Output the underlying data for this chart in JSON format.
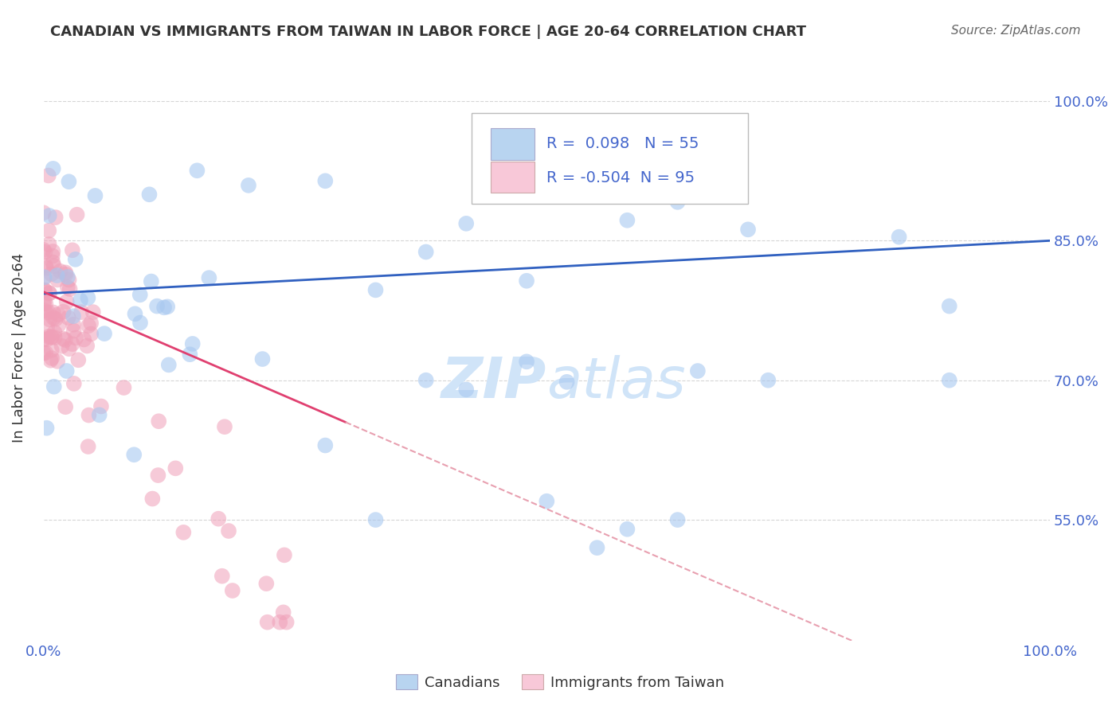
{
  "title": "CANADIAN VS IMMIGRANTS FROM TAIWAN IN LABOR FORCE | AGE 20-64 CORRELATION CHART",
  "source": "Source: ZipAtlas.com",
  "ylabel": "In Labor Force | Age 20-64",
  "xlim": [
    0.0,
    1.0
  ],
  "ylim": [
    0.42,
    1.05
  ],
  "yticks": [
    0.55,
    0.7,
    0.85,
    1.0
  ],
  "ytick_labels": [
    "55.0%",
    "70.0%",
    "85.0%",
    "100.0%"
  ],
  "blue_R": 0.098,
  "blue_N": 55,
  "pink_R": -0.504,
  "pink_N": 95,
  "background_color": "#ffffff",
  "grid_color": "#cccccc",
  "blue_dot_color": "#a8c8f0",
  "blue_dot_edge": "#88aadd",
  "pink_dot_color": "#f0a0b8",
  "pink_dot_edge": "#dd8898",
  "blue_line_color": "#3060c0",
  "pink_line_solid_color": "#e04070",
  "pink_line_dash_color": "#e8a0b0",
  "watermark_color": "#d0e4f8",
  "legend_blue_fill": "#b8d4f0",
  "legend_pink_fill": "#f8c8d8",
  "label_color": "#4466cc",
  "tick_label_color": "#4466cc",
  "title_color": "#333333",
  "source_color": "#666666",
  "ylabel_color": "#333333"
}
